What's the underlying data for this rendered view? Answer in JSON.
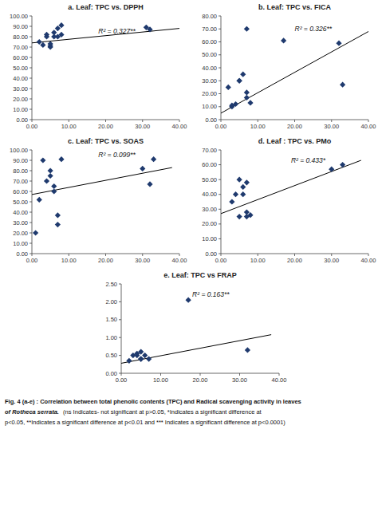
{
  "chart_data": [
    {
      "type": "scatter",
      "title": "a. Leaf: TPC vs. DPPH",
      "grid": false,
      "series": [
        {
          "type": "scatter",
          "marker": "diamond",
          "color": "#1F3A6E",
          "x": [
            2,
            3,
            4,
            4,
            5,
            5,
            5,
            6,
            6,
            7,
            7,
            8,
            8,
            31,
            32
          ],
          "values": [
            75,
            72,
            80,
            82,
            70,
            71,
            73,
            80,
            84,
            80,
            88,
            82,
            91,
            89,
            87
          ]
        },
        {
          "type": "line",
          "color": "black",
          "x": [
            0,
            40
          ],
          "values": [
            74.0,
            88.0
          ]
        }
      ],
      "annotations": [
        {
          "text": "R² = 0.327**",
          "x": 18,
          "y": 88
        }
      ],
      "xlim": [
        0,
        40
      ],
      "ylim": [
        0,
        100
      ],
      "xticks": [
        {
          "value": 0,
          "label": "0.00"
        },
        {
          "value": 10,
          "label": "10.00"
        },
        {
          "value": 20,
          "label": "20.00"
        },
        {
          "value": 30,
          "label": "30.00"
        },
        {
          "value": 40,
          "label": "40.00"
        }
      ],
      "yticks": [
        {
          "value": 0,
          "label": "0.00"
        },
        {
          "value": 10,
          "label": "10.00"
        },
        {
          "value": 20,
          "label": "20.00"
        },
        {
          "value": 30,
          "label": "30.00"
        },
        {
          "value": 40,
          "label": "40.00"
        },
        {
          "value": 50,
          "label": "50.00"
        },
        {
          "value": 60,
          "label": "60.00"
        },
        {
          "value": 70,
          "label": "70.00"
        },
        {
          "value": 80,
          "label": "80.00"
        },
        {
          "value": 90,
          "label": "90.00"
        },
        {
          "value": 100,
          "label": "100.00"
        }
      ]
    },
    {
      "type": "scatter",
      "title": "b. Leaf: TPC vs. FICA",
      "grid": false,
      "series": [
        {
          "type": "scatter",
          "marker": "diamond",
          "color": "#1F3A6E",
          "x": [
            2,
            3,
            3,
            4,
            5,
            5,
            6,
            7,
            7,
            7,
            8,
            17,
            32,
            33
          ],
          "values": [
            25,
            10,
            11,
            12,
            30,
            30,
            35,
            17,
            21,
            70,
            13,
            61,
            59,
            27
          ]
        },
        {
          "type": "line",
          "color": "black",
          "x": [
            0,
            40
          ],
          "values": [
            5.0,
            68.0
          ]
        }
      ],
      "annotations": [
        {
          "text": "R² = 0.326**",
          "x": 20,
          "y": 72
        }
      ],
      "xlim": [
        0,
        40
      ],
      "ylim": [
        0,
        80
      ],
      "xticks": [
        {
          "value": 0,
          "label": "0.00"
        },
        {
          "value": 10,
          "label": "10.00"
        },
        {
          "value": 20,
          "label": "20.00"
        },
        {
          "value": 30,
          "label": "30.00"
        },
        {
          "value": 40,
          "label": "40.00"
        }
      ],
      "yticks": [
        {
          "value": 0,
          "label": "0.00"
        },
        {
          "value": 10,
          "label": "10.00"
        },
        {
          "value": 20,
          "label": "20.00"
        },
        {
          "value": 30,
          "label": "30.00"
        },
        {
          "value": 40,
          "label": "40.00"
        },
        {
          "value": 50,
          "label": "50.00"
        },
        {
          "value": 60,
          "label": "60.00"
        },
        {
          "value": 70,
          "label": "70.00"
        },
        {
          "value": 80,
          "label": "80.00"
        }
      ]
    },
    {
      "type": "scatter",
      "title": "c. Leaf: TPC vs. SOAS",
      "grid": false,
      "series": [
        {
          "type": "scatter",
          "marker": "diamond",
          "color": "#1F3A6E",
          "x": [
            1,
            2,
            3,
            4,
            5,
            5,
            6,
            6,
            7,
            7,
            8,
            30,
            32,
            33
          ],
          "values": [
            20,
            52,
            90,
            70,
            75,
            80,
            60,
            65,
            28,
            37,
            91,
            82,
            67,
            91
          ]
        },
        {
          "type": "line",
          "color": "black",
          "x": [
            0,
            38
          ],
          "values": [
            57.0,
            83.0
          ]
        }
      ],
      "annotations": [
        {
          "text": "R² = 0.099**",
          "x": 18,
          "y": 98
        }
      ],
      "xlim": [
        0,
        40
      ],
      "ylim": [
        0,
        100
      ],
      "xticks": [
        {
          "value": 0,
          "label": "0.00"
        },
        {
          "value": 10,
          "label": "10.00"
        },
        {
          "value": 20,
          "label": "20.00"
        },
        {
          "value": 30,
          "label": "30.00"
        },
        {
          "value": 40,
          "label": "40.00"
        }
      ],
      "yticks": [
        {
          "value": 0,
          "label": "0.00"
        },
        {
          "value": 10,
          "label": "10.00"
        },
        {
          "value": 20,
          "label": "20.00"
        },
        {
          "value": 30,
          "label": "30.00"
        },
        {
          "value": 40,
          "label": "40.00"
        },
        {
          "value": 50,
          "label": "50.00"
        },
        {
          "value": 60,
          "label": "60.00"
        },
        {
          "value": 70,
          "label": "70.00"
        },
        {
          "value": 80,
          "label": "80.00"
        },
        {
          "value": 90,
          "label": "90.00"
        },
        {
          "value": 100,
          "label": "100.00"
        }
      ]
    },
    {
      "type": "scatter",
      "title": "d. Leaf : TPC vs. PMo",
      "grid": false,
      "series": [
        {
          "type": "scatter",
          "marker": "diamond",
          "color": "#1F3A6E",
          "x": [
            3,
            4,
            5,
            5,
            6,
            6,
            7,
            7,
            7,
            8,
            30,
            33
          ],
          "values": [
            35,
            40,
            50,
            25,
            40,
            45,
            28,
            25,
            48,
            26,
            57,
            60
          ]
        },
        {
          "type": "line",
          "color": "black",
          "x": [
            0,
            38
          ],
          "values": [
            27.0,
            63.0
          ]
        }
      ],
      "annotations": [
        {
          "text": "R² = 0.433*",
          "x": 19,
          "y": 65
        }
      ],
      "xlim": [
        0,
        40
      ],
      "ylim": [
        0,
        70
      ],
      "xticks": [
        {
          "value": 0,
          "label": "0.00"
        },
        {
          "value": 10,
          "label": "10.00"
        },
        {
          "value": 20,
          "label": "20.00"
        },
        {
          "value": 30,
          "label": "30.00"
        },
        {
          "value": 40,
          "label": "40.00"
        }
      ],
      "yticks": [
        {
          "value": 0,
          "label": "0.00"
        },
        {
          "value": 10,
          "label": "10.00"
        },
        {
          "value": 20,
          "label": "20.00"
        },
        {
          "value": 30,
          "label": "30.00"
        },
        {
          "value": 40,
          "label": "40.00"
        },
        {
          "value": 50,
          "label": "50.00"
        },
        {
          "value": 60,
          "label": "60.00"
        },
        {
          "value": 70,
          "label": "70.00"
        }
      ]
    },
    {
      "type": "scatter",
      "title": "e. Leaf: TPC vs FRAP",
      "grid": false,
      "series": [
        {
          "type": "scatter",
          "marker": "diamond",
          "color": "#1F3A6E",
          "x": [
            2,
            3,
            4,
            4,
            5,
            5,
            5,
            6,
            7,
            17,
            32
          ],
          "values": [
            0.35,
            0.5,
            0.5,
            0.55,
            0.4,
            0.4,
            0.6,
            0.5,
            0.4,
            2.05,
            0.65
          ]
        },
        {
          "type": "line",
          "color": "black",
          "x": [
            0,
            38
          ],
          "values": [
            0.28,
            1.08
          ]
        }
      ],
      "annotations": [
        {
          "text": "R² = 0.163**",
          "x": 18,
          "y": 2.28
        }
      ],
      "xlim": [
        0,
        40
      ],
      "ylim": [
        0,
        2.5
      ],
      "xticks": [
        {
          "value": 0,
          "label": "0.00"
        },
        {
          "value": 10,
          "label": "10.00"
        },
        {
          "value": 20,
          "label": "20.00"
        },
        {
          "value": 30,
          "label": "30.00"
        },
        {
          "value": 40,
          "label": "40.00"
        }
      ],
      "yticks": [
        {
          "value": 0.0,
          "label": "0.00"
        },
        {
          "value": 0.5,
          "label": "0.50"
        },
        {
          "value": 1.0,
          "label": "1.00"
        },
        {
          "value": 1.5,
          "label": "1.50"
        },
        {
          "value": 2.0,
          "label": "2.00"
        },
        {
          "value": 2.5,
          "label": "2.50"
        }
      ]
    }
  ],
  "caption": [
    "Fig. 4 (a-e) : Correlation between total phenolic contents (TPC) and Radical scavenging activity in leaves",
    "of Rotheca serrata.",
    "  (ns Indicates- not significant at p>0.05, *Indicates a significant difference at",
    "p<0.05, **Indicates a significant difference at p<0.01 and *** Indicates a significant difference at p<0.0001)"
  ]
}
